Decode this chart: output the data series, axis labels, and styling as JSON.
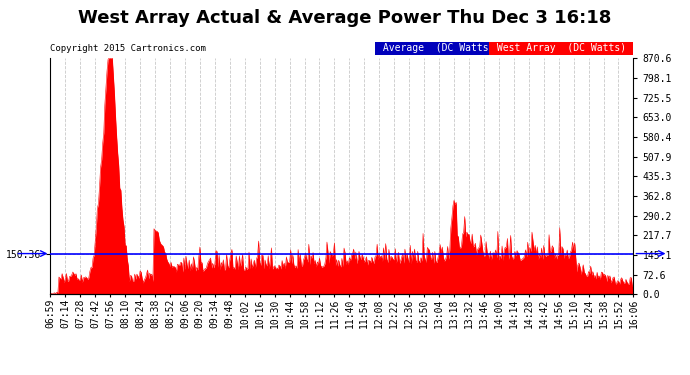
{
  "title": "West Array Actual & Average Power Thu Dec 3 16:18",
  "copyright": "Copyright 2015 Cartronics.com",
  "average_value": 150.36,
  "y_max": 870.6,
  "y_ticks_right": [
    0.0,
    72.6,
    145.1,
    217.7,
    290.2,
    362.8,
    435.3,
    507.9,
    580.4,
    653.0,
    725.5,
    798.1,
    870.6
  ],
  "y_left_label": "150.36",
  "bg_color": "#ffffff",
  "grid_color": "#bbbbbb",
  "fill_color": "#ff0000",
  "avg_line_color": "#0000ff",
  "title_fontsize": 13,
  "tick_fontsize": 7,
  "x_labels": [
    "06:59",
    "07:14",
    "07:28",
    "07:42",
    "07:56",
    "08:10",
    "08:24",
    "08:38",
    "08:52",
    "09:06",
    "09:20",
    "09:34",
    "09:48",
    "10:02",
    "10:16",
    "10:30",
    "10:44",
    "10:58",
    "11:12",
    "11:26",
    "11:40",
    "11:54",
    "12:08",
    "12:22",
    "12:36",
    "12:50",
    "13:04",
    "13:18",
    "13:32",
    "13:46",
    "14:00",
    "14:14",
    "14:28",
    "14:42",
    "14:56",
    "15:10",
    "15:24",
    "15:38",
    "15:52",
    "16:06"
  ]
}
